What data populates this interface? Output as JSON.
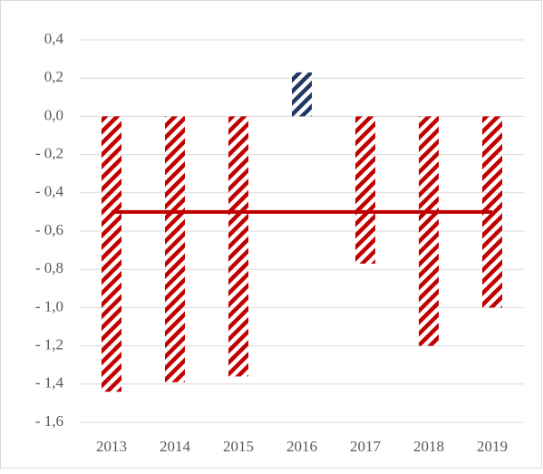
{
  "chart_data": {
    "type": "bar",
    "categories": [
      "2013",
      "2014",
      "2015",
      "2016",
      "2017",
      "2018",
      "2019"
    ],
    "series": [
      {
        "type": "bar",
        "color": "#c00000",
        "colors": [
          "#c00000",
          "#c00000",
          "#c00000",
          "#1f3864",
          "#c00000",
          "#c00000",
          "#c00000"
        ],
        "values": [
          -1.44,
          -1.39,
          -1.36,
          0.23,
          -0.77,
          -1.2,
          -1.0
        ]
      },
      {
        "type": "line",
        "color": "#c00000",
        "values": [
          -0.5,
          -0.5,
          -0.5,
          -0.5,
          -0.5,
          -0.5,
          -0.5
        ]
      }
    ],
    "ylim": [
      -1.6,
      0.4
    ],
    "yticks": [
      {
        "value": 0.4,
        "label": "0,4"
      },
      {
        "value": 0.2,
        "label": "0,2"
      },
      {
        "value": 0,
        "label": "0,0"
      },
      {
        "value": -0.2,
        "label": "- 0,2"
      },
      {
        "value": -0.4,
        "label": "- 0,4"
      },
      {
        "value": -0.6,
        "label": "- 0,6"
      },
      {
        "value": -0.8,
        "label": "- 0,8"
      },
      {
        "value": -1.0,
        "label": "- 1,0"
      },
      {
        "value": -1.2,
        "label": "- 1,2"
      },
      {
        "value": -1.4,
        "label": "- 1,4"
      },
      {
        "value": -1.6,
        "label": "- 1,6"
      }
    ],
    "grid": true
  }
}
